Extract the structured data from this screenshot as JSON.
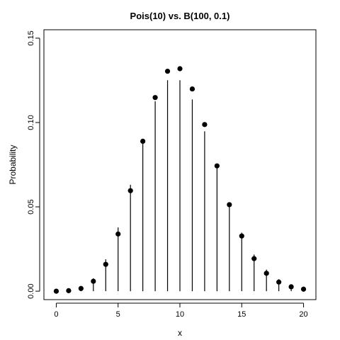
{
  "chart_data": {
    "type": "scatter",
    "title": "Pois(10) vs. B(100, 0.1)",
    "xlabel": "x",
    "ylabel": "Probability",
    "xlim": [
      -1,
      21
    ],
    "ylim": [
      -0.005,
      0.155
    ],
    "x_ticks": [
      0,
      5,
      10,
      15,
      20
    ],
    "y_ticks": [
      0.0,
      0.05,
      0.1,
      0.15
    ],
    "x_tick_labels": [
      "0",
      "5",
      "10",
      "15",
      "20"
    ],
    "y_tick_labels": [
      "0.00",
      "0.05",
      "0.10",
      "0.15"
    ],
    "grid": false,
    "series": [
      {
        "style": "vertical-lines",
        "color": "#000000",
        "x": [
          0,
          1,
          2,
          3,
          4,
          5,
          6,
          7,
          8,
          9,
          10,
          11,
          12,
          13,
          14,
          15,
          16,
          17,
          18,
          19,
          20
        ],
        "values": [
          0.0,
          0.0005,
          0.0023,
          0.0076,
          0.0189,
          0.0378,
          0.0631,
          0.0901,
          0.1126,
          0.1251,
          0.1251,
          0.1137,
          0.0948,
          0.0729,
          0.0521,
          0.0347,
          0.0217,
          0.0128,
          0.0071,
          0.0037,
          0.0019
        ]
      },
      {
        "style": "points",
        "color": "#000000",
        "x": [
          0,
          1,
          2,
          3,
          4,
          5,
          6,
          7,
          8,
          9,
          10,
          11,
          12,
          13,
          14,
          15,
          16,
          17,
          18,
          19,
          20
        ],
        "values": [
          0.0,
          0.0003,
          0.0016,
          0.0059,
          0.0159,
          0.0339,
          0.0596,
          0.0889,
          0.1148,
          0.1304,
          0.1319,
          0.1199,
          0.0988,
          0.0743,
          0.0513,
          0.0327,
          0.0193,
          0.0106,
          0.0054,
          0.0026,
          0.0012
        ]
      }
    ]
  }
}
